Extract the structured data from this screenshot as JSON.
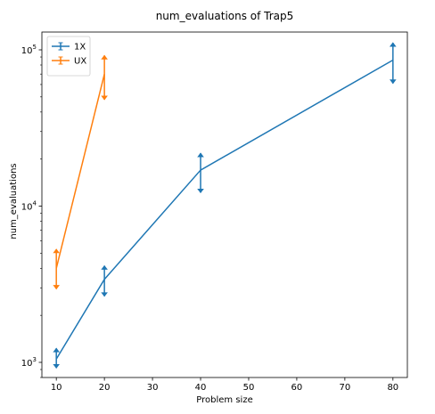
{
  "chart_data": {
    "type": "line",
    "title": "num_evaluations of Trap5",
    "xlabel": "Problem size",
    "ylabel": "num_evaluations",
    "xlim": [
      7,
      83
    ],
    "ylim": [
      800,
      130000
    ],
    "yscale": "log",
    "x_ticks": [
      10,
      20,
      30,
      40,
      50,
      60,
      70,
      80
    ],
    "y_ticks": [
      {
        "value": 1000,
        "base": "10",
        "exp": "3"
      },
      {
        "value": 10000,
        "base": "10",
        "exp": "4"
      },
      {
        "value": 100000,
        "base": "10",
        "exp": "5"
      }
    ],
    "grid": false,
    "legend_position": "upper left",
    "series": [
      {
        "name": "1X",
        "color": "#1f77b4",
        "x": [
          10,
          20,
          40,
          80
        ],
        "y": [
          1050,
          3400,
          17000,
          86000
        ],
        "yerr_low": [
          920,
          2650,
          12200,
          61000
        ],
        "yerr_high": [
          1230,
          4150,
          21800,
          111000
        ]
      },
      {
        "name": "UX",
        "color": "#ff7f0e",
        "x": [
          10,
          20
        ],
        "y": [
          4000,
          70000
        ],
        "yerr_low": [
          2950,
          48000
        ],
        "yerr_high": [
          5300,
          92000
        ]
      }
    ]
  }
}
